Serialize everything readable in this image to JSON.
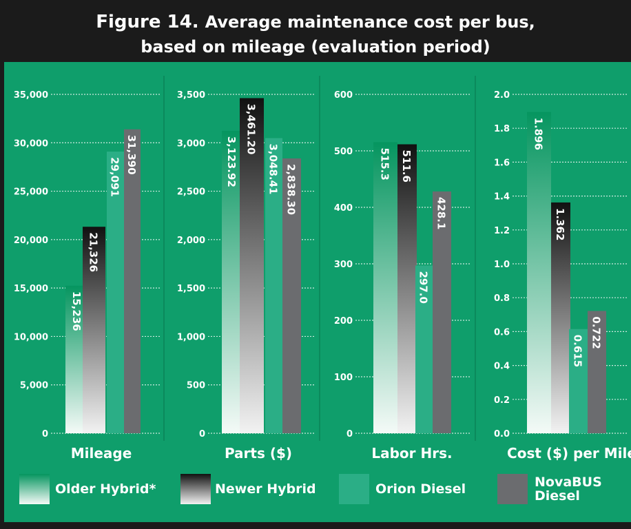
{
  "figure_label": "Figure 14.",
  "title": [
    "Average maintenance cost per bus,",
    "based on mileage (evaluation period)"
  ],
  "legend": [
    {
      "name": "Older Hybrid*",
      "color": [
        "#05955f",
        "#f4faf7"
      ]
    },
    {
      "name": "Newer Hybrid",
      "color": [
        "#111111",
        "#f2f2f2"
      ]
    },
    {
      "name": "Orion Diesel",
      "color": "#2bae86"
    },
    {
      "name": "NovaBUS Diesel",
      "color": "#6b6c6f"
    }
  ],
  "chart_data": [
    {
      "type": "bar",
      "x_label": "Mileage",
      "ylim": [
        0,
        35000
      ],
      "yticks": [
        0,
        {
          "value": 5000,
          "label": "5,000"
        },
        {
          "value": 10000,
          "label": "10,000"
        },
        {
          "value": 15000,
          "label": "15,000"
        },
        {
          "value": 20000,
          "label": "20,000"
        },
        {
          "value": 25000,
          "label": "25,000"
        },
        {
          "value": 30000,
          "label": "30,000"
        },
        {
          "value": 35000,
          "label": "35,000"
        }
      ],
      "values": [
        15236,
        21326,
        29091,
        31390
      ],
      "value_labels": [
        "15,236",
        "21,326",
        "29,091",
        "31,390"
      ]
    },
    {
      "type": "bar",
      "x_label": "Parts ($)",
      "ylim": [
        0,
        3500
      ],
      "yticks": [
        0,
        500,
        {
          "value": 1000,
          "label": "1,000"
        },
        {
          "value": 1500,
          "label": "1,500"
        },
        {
          "value": 2000,
          "label": "2,000"
        },
        {
          "value": 2500,
          "label": "2,500"
        },
        {
          "value": 3000,
          "label": "3,000"
        },
        {
          "value": 3500,
          "label": "3,500"
        }
      ],
      "values": [
        3123.92,
        3461.2,
        3048.41,
        2838.3
      ],
      "value_labels": [
        "3,123.92",
        "3,461.20",
        "3,048.41",
        "2,838.30"
      ]
    },
    {
      "type": "bar",
      "x_label": "Labor Hrs.",
      "ylim": [
        0,
        600
      ],
      "yticks": [
        0,
        100,
        200,
        300,
        400,
        500,
        600
      ],
      "values": [
        515.3,
        511.6,
        297.0,
        428.1
      ],
      "value_labels": [
        "515.3",
        "511.6",
        "297.0",
        "428.1"
      ]
    },
    {
      "type": "bar",
      "x_label": "Cost ($) per Mile",
      "ylim": [
        0,
        2.0
      ],
      "yticks": [
        {
          "value": 0,
          "label": "0.0"
        },
        0.2,
        0.4,
        0.6,
        0.8,
        {
          "value": 1,
          "label": "1.0"
        },
        1.2,
        1.4,
        1.6,
        1.8,
        {
          "value": 2,
          "label": "2.0"
        }
      ],
      "values": [
        1.896,
        1.362,
        0.615,
        0.722
      ],
      "value_labels": [
        "1.896",
        "1.362",
        "0.615",
        "0.722"
      ]
    }
  ]
}
